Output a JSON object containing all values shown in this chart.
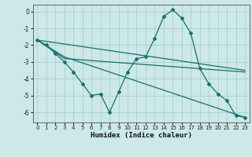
{
  "xlabel": "Humidex (Indice chaleur)",
  "bg_color": "#cce8e8",
  "grid_color": "#aacfcf",
  "line_color": "#1a6e6e",
  "xlim": [
    -0.5,
    23.5
  ],
  "ylim": [
    -6.6,
    0.4
  ],
  "yticks": [
    0,
    -1,
    -2,
    -3,
    -4,
    -5,
    -6
  ],
  "xticks": [
    0,
    1,
    2,
    3,
    4,
    5,
    6,
    7,
    8,
    9,
    10,
    11,
    12,
    13,
    14,
    15,
    16,
    17,
    18,
    19,
    20,
    21,
    22,
    23
  ],
  "lines": [
    {
      "x": [
        0,
        1,
        2,
        3,
        4,
        5,
        6,
        7,
        8,
        9,
        10,
        11,
        12,
        13,
        14,
        15,
        16,
        17,
        18,
        19,
        20,
        21,
        22,
        23
      ],
      "y": [
        -1.7,
        -2.0,
        -2.5,
        -3.0,
        -3.6,
        -4.3,
        -5.0,
        -4.9,
        -6.0,
        -4.8,
        -3.6,
        -2.8,
        -2.7,
        -1.6,
        -0.3,
        0.1,
        -0.4,
        -1.3,
        -3.4,
        -4.3,
        -4.9,
        -5.3,
        -6.2,
        -6.3
      ],
      "marker": true
    },
    {
      "x": [
        0,
        23
      ],
      "y": [
        -1.7,
        -3.5
      ],
      "marker": false
    },
    {
      "comment": "line from 0,-1.7 through 3,-2.7 to 23,-6.3",
      "x": [
        0,
        3,
        23
      ],
      "y": [
        -1.7,
        -2.7,
        -6.3
      ],
      "marker": false
    },
    {
      "comment": "line from 0,-1.7 through ~3,-2.8 to 23,-3.6",
      "x": [
        0,
        3,
        23
      ],
      "y": [
        -1.7,
        -2.8,
        -3.6
      ],
      "marker": false
    }
  ]
}
